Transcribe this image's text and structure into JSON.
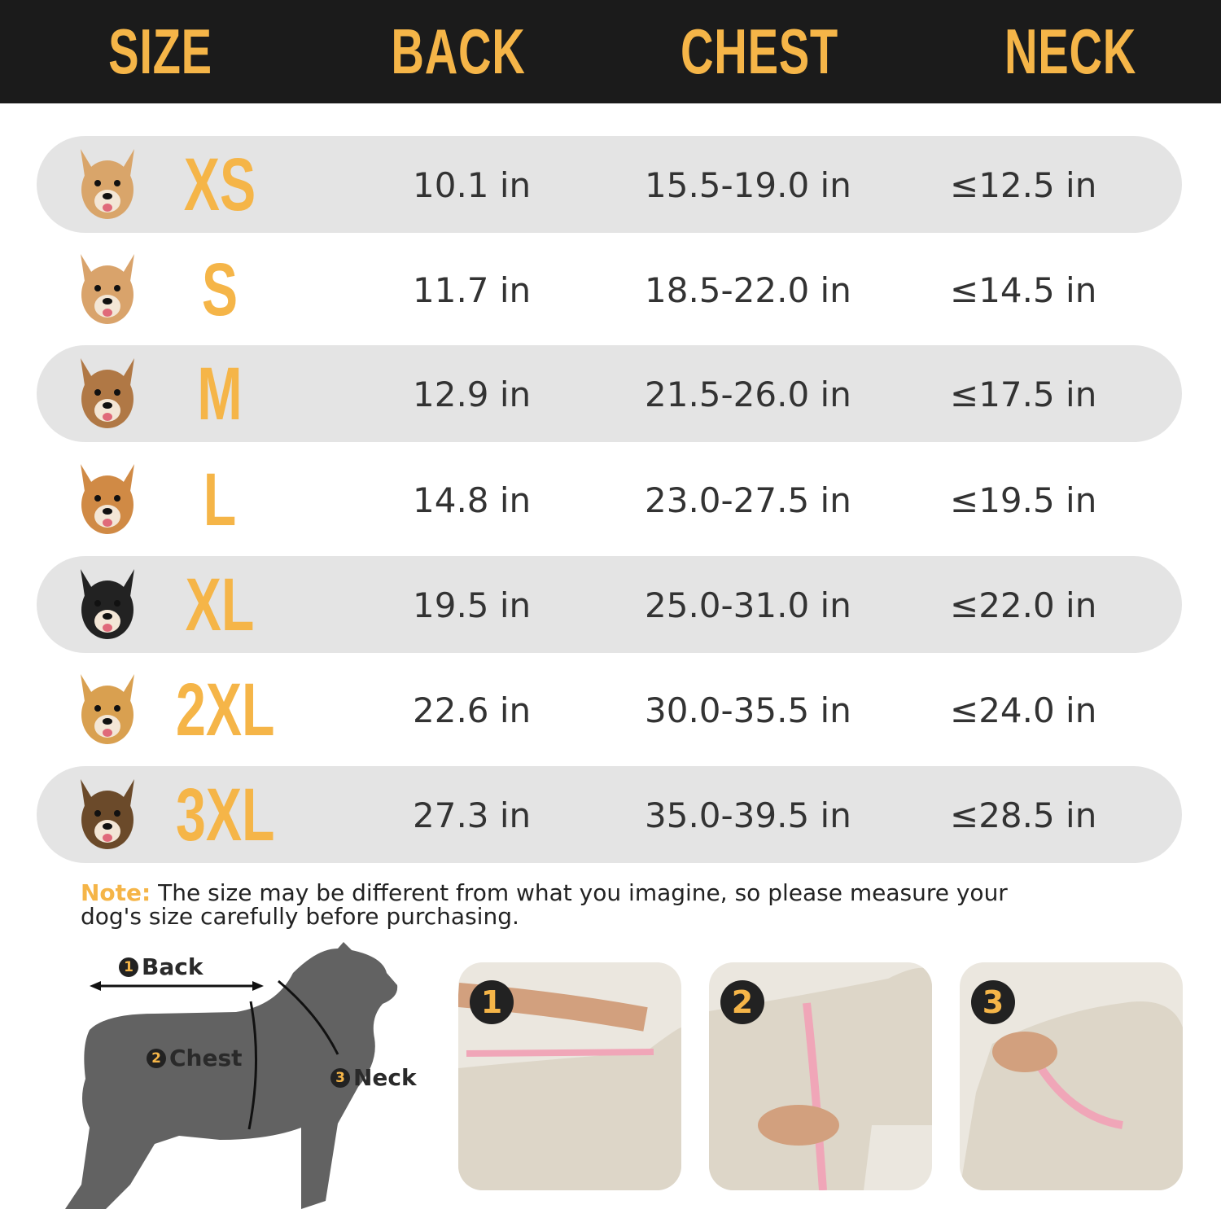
{
  "headers": [
    "SIZE",
    "BACK",
    "CHEST",
    "NECK"
  ],
  "rows": [
    {
      "size": "XS",
      "back": "10.1 in",
      "chest": "15.5-19.0 in",
      "neck": "≤12.5 in",
      "dog": "chihuahua"
    },
    {
      "size": "S",
      "back": "11.7 in",
      "chest": "18.5-22.0 in",
      "neck": "≤14.5 in",
      "dog": "maltipoo"
    },
    {
      "size": "M",
      "back": "12.9 in",
      "chest": "21.5-26.0 in",
      "neck": "≤17.5 in",
      "dog": "poodle"
    },
    {
      "size": "L",
      "back": "14.8 in",
      "chest": "23.0-27.5 in",
      "neck": "≤19.5 in",
      "dog": "corgi"
    },
    {
      "size": "XL",
      "back": "19.5 in",
      "chest": "25.0-31.0 in",
      "neck": "≤22.0 in",
      "dog": "border-collie"
    },
    {
      "size": "2XL",
      "back": "22.6 in",
      "chest": "30.0-35.5 in",
      "neck": "≤24.0 in",
      "dog": "golden-retriever"
    },
    {
      "size": "3XL",
      "back": "27.3 in",
      "chest": "35.0-39.5 in",
      "neck": "≤28.5 in",
      "dog": "german-shepherd"
    }
  ],
  "note": {
    "label": "Note:",
    "text": " The size may be different from what you imagine, so please measure your dog's size carefully before purchasing."
  },
  "diagram": {
    "back": {
      "num": "1",
      "label": "Back"
    },
    "chest": {
      "num": "2",
      "label": "Chest"
    },
    "neck": {
      "num": "3",
      "label": "Neck"
    }
  },
  "photos": [
    "1",
    "2",
    "3"
  ],
  "colors": {
    "accent": "#f5b548",
    "header_bg": "#1b1b1b",
    "row_shade": "#e4e4e4"
  }
}
